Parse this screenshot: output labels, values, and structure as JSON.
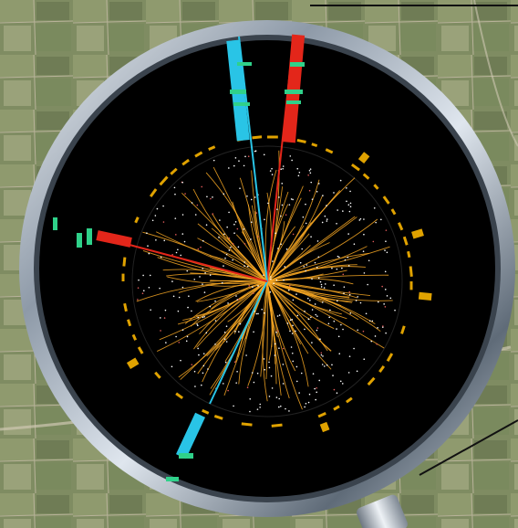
{
  "image": {
    "subject": "particle-collision-event-display-in-magnifying-glass",
    "background": "aerial-farmland",
    "colors": {
      "lens_background": "#000000",
      "tracks": "#f5a623",
      "muon_track_blue": "#29c4e6",
      "muon_track_red": "#e3261a",
      "muon_chambers_green": "#2fd18a",
      "calorimeter_deposits": "#e0a200",
      "frame_metal": "#a8b4c4"
    }
  }
}
